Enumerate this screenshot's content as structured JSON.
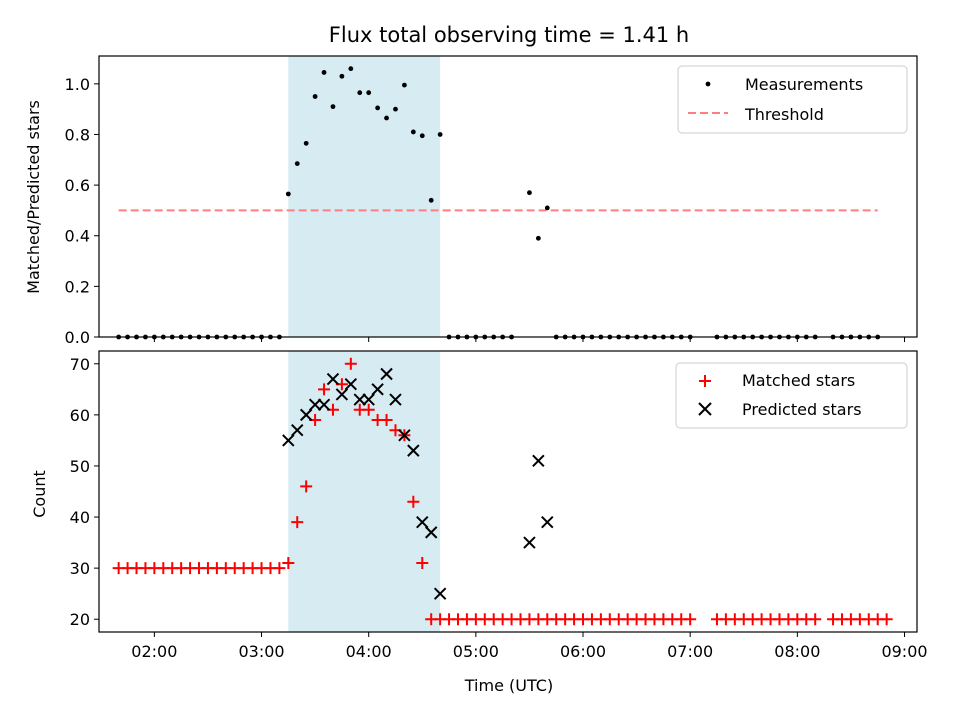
{
  "title": "Flux total observing time = 1.41 h",
  "colors": {
    "shade": "#add8e6",
    "measurement": "#000000",
    "threshold": "#ff7f7f",
    "matched": "#ff0000",
    "predicted": "#000000"
  },
  "chart_data": [
    {
      "type": "scatter",
      "ylabel": "Matched/Predicted stars",
      "ylim": [
        0,
        1.11
      ],
      "yticks": [
        0.0,
        0.2,
        0.4,
        0.6,
        0.8,
        1.0
      ],
      "ytick_labels": [
        "0.0",
        "0.2",
        "0.4",
        "0.6",
        "0.8",
        "1.0"
      ],
      "xlim": [
        "01:29",
        "09:07"
      ],
      "shaded_interval": [
        "03:15",
        "04:40"
      ],
      "legend_position": "top-right",
      "series": [
        {
          "name": "Measurements",
          "marker": "dot",
          "points": [
            [
              "01:40",
              0
            ],
            [
              "01:45",
              0
            ],
            [
              "01:50",
              0
            ],
            [
              "01:55",
              0
            ],
            [
              "02:00",
              0
            ],
            [
              "02:05",
              0
            ],
            [
              "02:10",
              0
            ],
            [
              "02:15",
              0
            ],
            [
              "02:20",
              0
            ],
            [
              "02:25",
              0
            ],
            [
              "02:30",
              0
            ],
            [
              "02:35",
              0
            ],
            [
              "02:40",
              0
            ],
            [
              "02:45",
              0
            ],
            [
              "02:50",
              0
            ],
            [
              "02:55",
              0
            ],
            [
              "03:00",
              0
            ],
            [
              "03:05",
              0
            ],
            [
              "03:10",
              0
            ],
            [
              "03:15",
              0.565
            ],
            [
              "03:20",
              0.685
            ],
            [
              "03:25",
              0.765
            ],
            [
              "03:30",
              0.95
            ],
            [
              "03:35",
              1.045
            ],
            [
              "03:40",
              0.91
            ],
            [
              "03:45",
              1.03
            ],
            [
              "03:50",
              1.06
            ],
            [
              "03:55",
              0.965
            ],
            [
              "04:00",
              0.965
            ],
            [
              "04:05",
              0.905
            ],
            [
              "04:10",
              0.865
            ],
            [
              "04:15",
              0.9
            ],
            [
              "04:20",
              0.995
            ],
            [
              "04:25",
              0.81
            ],
            [
              "04:30",
              0.795
            ],
            [
              "04:35",
              0.54
            ],
            [
              "04:40",
              0.8
            ],
            [
              "04:45",
              0
            ],
            [
              "04:50",
              0
            ],
            [
              "04:55",
              0
            ],
            [
              "05:00",
              0
            ],
            [
              "05:05",
              0
            ],
            [
              "05:10",
              0
            ],
            [
              "05:15",
              0
            ],
            [
              "05:20",
              0
            ],
            [
              "05:30",
              0.57
            ],
            [
              "05:35",
              0.39
            ],
            [
              "05:40",
              0.51
            ],
            [
              "05:45",
              0
            ],
            [
              "05:50",
              0
            ],
            [
              "05:55",
              0
            ],
            [
              "06:00",
              0
            ],
            [
              "06:05",
              0
            ],
            [
              "06:10",
              0
            ],
            [
              "06:15",
              0
            ],
            [
              "06:20",
              0
            ],
            [
              "06:25",
              0
            ],
            [
              "06:30",
              0
            ],
            [
              "06:35",
              0
            ],
            [
              "06:40",
              0
            ],
            [
              "06:45",
              0
            ],
            [
              "06:50",
              0
            ],
            [
              "06:55",
              0
            ],
            [
              "07:00",
              0
            ],
            [
              "07:15",
              0
            ],
            [
              "07:20",
              0
            ],
            [
              "07:25",
              0
            ],
            [
              "07:30",
              0
            ],
            [
              "07:35",
              0
            ],
            [
              "07:40",
              0
            ],
            [
              "07:45",
              0
            ],
            [
              "07:50",
              0
            ],
            [
              "07:55",
              0
            ],
            [
              "08:00",
              0
            ],
            [
              "08:05",
              0
            ],
            [
              "08:10",
              0
            ],
            [
              "08:20",
              0
            ],
            [
              "08:25",
              0
            ],
            [
              "08:30",
              0
            ],
            [
              "08:35",
              0
            ],
            [
              "08:40",
              0
            ],
            [
              "08:45",
              0
            ]
          ]
        },
        {
          "name": "Threshold",
          "style": "dashed",
          "points": [
            [
              "01:40",
              0.5
            ],
            [
              "08:45",
              0.5
            ]
          ]
        }
      ]
    },
    {
      "type": "scatter",
      "ylabel": "Count",
      "xlabel": "Time (UTC)",
      "ylim": [
        17.5,
        72.5
      ],
      "yticks": [
        20,
        30,
        40,
        50,
        60,
        70
      ],
      "ytick_labels": [
        "20",
        "30",
        "40",
        "50",
        "60",
        "70"
      ],
      "xlim": [
        "01:29",
        "09:07"
      ],
      "xticks": [
        "02:00",
        "03:00",
        "04:00",
        "05:00",
        "06:00",
        "07:00",
        "08:00",
        "09:00"
      ],
      "shaded_interval": [
        "03:15",
        "04:40"
      ],
      "legend_position": "top-right",
      "series": [
        {
          "name": "Matched stars",
          "marker": "plus",
          "points": [
            [
              "01:40",
              30
            ],
            [
              "01:45",
              30
            ],
            [
              "01:50",
              30
            ],
            [
              "01:55",
              30
            ],
            [
              "02:00",
              30
            ],
            [
              "02:05",
              30
            ],
            [
              "02:10",
              30
            ],
            [
              "02:15",
              30
            ],
            [
              "02:20",
              30
            ],
            [
              "02:25",
              30
            ],
            [
              "02:30",
              30
            ],
            [
              "02:35",
              30
            ],
            [
              "02:40",
              30
            ],
            [
              "02:45",
              30
            ],
            [
              "02:50",
              30
            ],
            [
              "02:55",
              30
            ],
            [
              "03:00",
              30
            ],
            [
              "03:05",
              30
            ],
            [
              "03:10",
              30
            ],
            [
              "03:15",
              31
            ],
            [
              "03:20",
              39
            ],
            [
              "03:25",
              46
            ],
            [
              "03:30",
              59
            ],
            [
              "03:35",
              65
            ],
            [
              "03:40",
              61
            ],
            [
              "03:45",
              66
            ],
            [
              "03:50",
              70
            ],
            [
              "03:55",
              61
            ],
            [
              "04:00",
              61
            ],
            [
              "04:05",
              59
            ],
            [
              "04:10",
              59
            ],
            [
              "04:15",
              57
            ],
            [
              "04:20",
              56
            ],
            [
              "04:25",
              43
            ],
            [
              "04:30",
              31
            ],
            [
              "04:35",
              20
            ],
            [
              "04:40",
              20
            ],
            [
              "04:45",
              20
            ],
            [
              "04:50",
              20
            ],
            [
              "04:55",
              20
            ],
            [
              "05:00",
              20
            ],
            [
              "05:05",
              20
            ],
            [
              "05:10",
              20
            ],
            [
              "05:15",
              20
            ],
            [
              "05:20",
              20
            ],
            [
              "05:25",
              20
            ],
            [
              "05:30",
              20
            ],
            [
              "05:35",
              20
            ],
            [
              "05:40",
              20
            ],
            [
              "05:45",
              20
            ],
            [
              "05:50",
              20
            ],
            [
              "05:55",
              20
            ],
            [
              "06:00",
              20
            ],
            [
              "06:05",
              20
            ],
            [
              "06:10",
              20
            ],
            [
              "06:15",
              20
            ],
            [
              "06:20",
              20
            ],
            [
              "06:25",
              20
            ],
            [
              "06:30",
              20
            ],
            [
              "06:35",
              20
            ],
            [
              "06:40",
              20
            ],
            [
              "06:45",
              20
            ],
            [
              "06:50",
              20
            ],
            [
              "06:55",
              20
            ],
            [
              "07:00",
              20
            ],
            [
              "07:15",
              20
            ],
            [
              "07:20",
              20
            ],
            [
              "07:25",
              20
            ],
            [
              "07:30",
              20
            ],
            [
              "07:35",
              20
            ],
            [
              "07:40",
              20
            ],
            [
              "07:45",
              20
            ],
            [
              "07:50",
              20
            ],
            [
              "07:55",
              20
            ],
            [
              "08:00",
              20
            ],
            [
              "08:05",
              20
            ],
            [
              "08:10",
              20
            ],
            [
              "08:20",
              20
            ],
            [
              "08:25",
              20
            ],
            [
              "08:30",
              20
            ],
            [
              "08:35",
              20
            ],
            [
              "08:40",
              20
            ],
            [
              "08:45",
              20
            ],
            [
              "08:50",
              20
            ]
          ]
        },
        {
          "name": "Predicted stars",
          "marker": "x",
          "points": [
            [
              "03:15",
              55
            ],
            [
              "03:20",
              57
            ],
            [
              "03:25",
              60
            ],
            [
              "03:30",
              62
            ],
            [
              "03:35",
              62
            ],
            [
              "03:40",
              67
            ],
            [
              "03:45",
              64
            ],
            [
              "03:50",
              66
            ],
            [
              "03:55",
              63
            ],
            [
              "04:00",
              63
            ],
            [
              "04:05",
              65
            ],
            [
              "04:10",
              68
            ],
            [
              "04:15",
              63
            ],
            [
              "04:20",
              56
            ],
            [
              "04:25",
              53
            ],
            [
              "04:30",
              39
            ],
            [
              "04:35",
              37
            ],
            [
              "04:40",
              25
            ],
            [
              "05:30",
              35
            ],
            [
              "05:35",
              51
            ],
            [
              "05:40",
              39
            ]
          ]
        }
      ]
    }
  ]
}
